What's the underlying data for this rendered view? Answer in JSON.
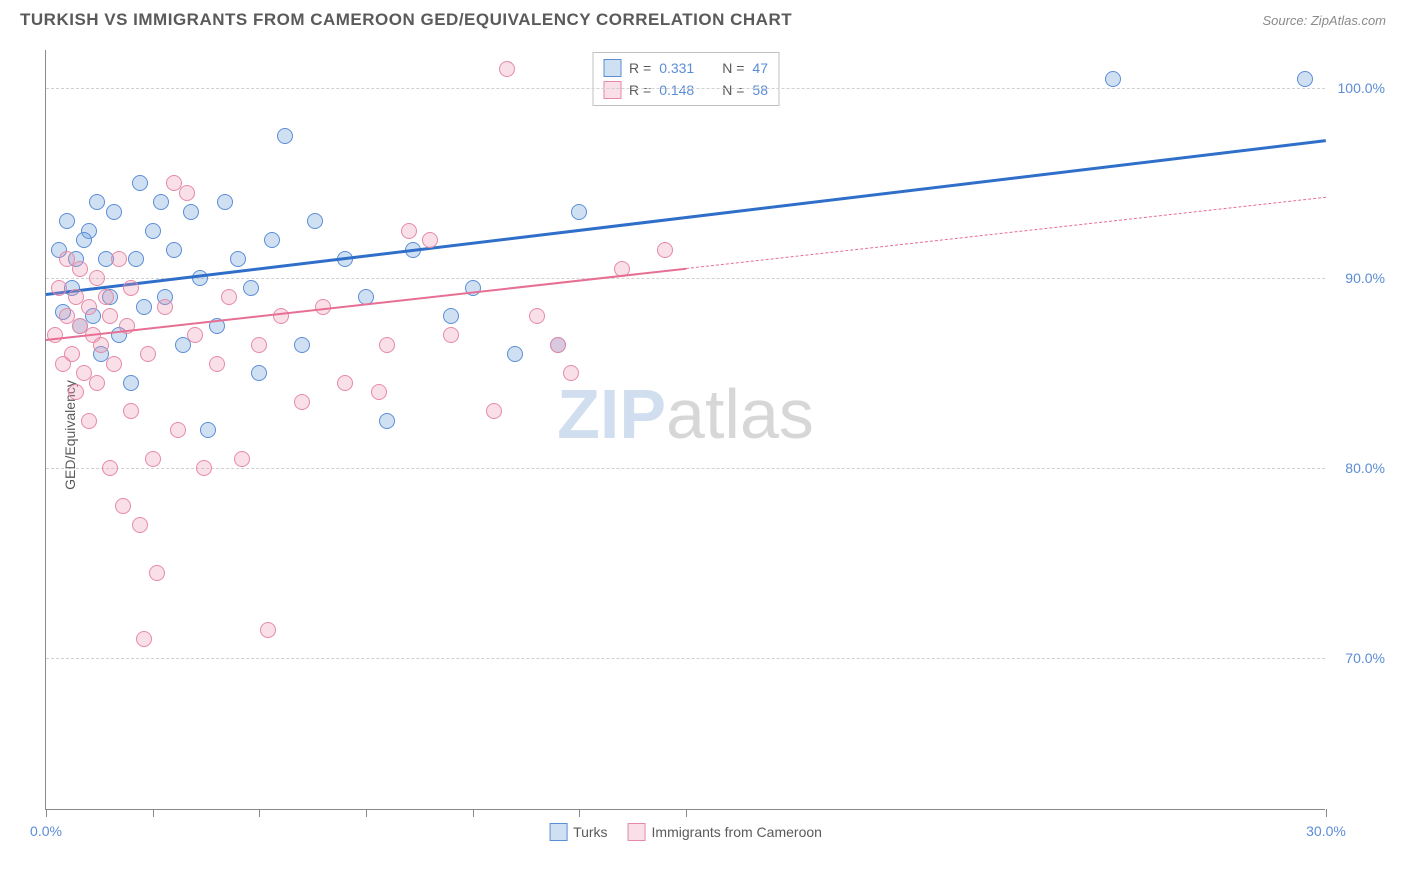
{
  "header": {
    "title": "TURKISH VS IMMIGRANTS FROM CAMEROON GED/EQUIVALENCY CORRELATION CHART",
    "source": "Source: ZipAtlas.com"
  },
  "watermark": {
    "part1": "ZIP",
    "part2": "atlas"
  },
  "chart": {
    "type": "scatter",
    "ylabel": "GED/Equivalency",
    "background_color": "#ffffff",
    "grid_color": "#d0d0d0",
    "axis_color": "#8a8a8a",
    "tick_label_color": "#5b8dd6",
    "xlim": [
      0,
      30
    ],
    "ylim": [
      62,
      102
    ],
    "x_ticks": [
      0,
      2.5,
      5,
      7.5,
      10,
      12.5,
      15,
      30
    ],
    "x_tick_labels": {
      "0": "0.0%",
      "30": "30.0%"
    },
    "y_ticks": [
      70,
      80,
      90,
      100
    ],
    "y_tick_labels": {
      "70": "70.0%",
      "80": "80.0%",
      "90": "90.0%",
      "100": "100.0%"
    },
    "marker_radius": 8,
    "series": [
      {
        "name": "Turks",
        "fill_color": "rgba(120,165,220,0.35)",
        "stroke_color": "#5b8dd6",
        "line_color": "#2f6fc9",
        "line_width": 2.5,
        "trend": {
          "x1": 0,
          "y1": 89.2,
          "x2": 30,
          "y2": 97.3,
          "dash_from_x": null
        },
        "R": "0.331",
        "N": "47",
        "points": [
          [
            0.3,
            91.5
          ],
          [
            0.4,
            88.2
          ],
          [
            0.5,
            93.0
          ],
          [
            0.6,
            89.5
          ],
          [
            0.7,
            91.0
          ],
          [
            0.8,
            87.5
          ],
          [
            1.0,
            92.5
          ],
          [
            1.1,
            88.0
          ],
          [
            1.2,
            94.0
          ],
          [
            1.3,
            86.0
          ],
          [
            1.4,
            91.0
          ],
          [
            1.5,
            89.0
          ],
          [
            1.6,
            93.5
          ],
          [
            1.7,
            87.0
          ],
          [
            0.9,
            92.0
          ],
          [
            2.0,
            84.5
          ],
          [
            2.1,
            91.0
          ],
          [
            2.2,
            95.0
          ],
          [
            2.3,
            88.5
          ],
          [
            2.5,
            92.5
          ],
          [
            2.7,
            94.0
          ],
          [
            2.8,
            89.0
          ],
          [
            3.0,
            91.5
          ],
          [
            3.2,
            86.5
          ],
          [
            3.4,
            93.5
          ],
          [
            3.6,
            90.0
          ],
          [
            3.8,
            82.0
          ],
          [
            4.0,
            87.5
          ],
          [
            4.2,
            94.0
          ],
          [
            4.5,
            91.0
          ],
          [
            4.8,
            89.5
          ],
          [
            5.0,
            85.0
          ],
          [
            5.3,
            92.0
          ],
          [
            5.6,
            97.5
          ],
          [
            6.0,
            86.5
          ],
          [
            6.3,
            93.0
          ],
          [
            7.0,
            91.0
          ],
          [
            7.5,
            89.0
          ],
          [
            8.0,
            82.5
          ],
          [
            8.6,
            91.5
          ],
          [
            9.5,
            88.0
          ],
          [
            10.0,
            89.5
          ],
          [
            11.0,
            86.0
          ],
          [
            12.0,
            86.5
          ],
          [
            12.5,
            93.5
          ],
          [
            25.0,
            100.5
          ],
          [
            29.5,
            100.5
          ]
        ]
      },
      {
        "name": "Immigrants from Cameroon",
        "fill_color": "rgba(235,150,175,0.30)",
        "stroke_color": "#e68aa6",
        "line_color": "#e76f94",
        "line_width": 2,
        "trend": {
          "x1": 0,
          "y1": 86.8,
          "x2": 30,
          "y2": 94.3,
          "dash_from_x": 15
        },
        "R": "0.148",
        "N": "58",
        "points": [
          [
            0.2,
            87.0
          ],
          [
            0.3,
            89.5
          ],
          [
            0.4,
            85.5
          ],
          [
            0.5,
            88.0
          ],
          [
            0.5,
            91.0
          ],
          [
            0.6,
            86.0
          ],
          [
            0.7,
            89.0
          ],
          [
            0.7,
            84.0
          ],
          [
            0.8,
            90.5
          ],
          [
            0.8,
            87.5
          ],
          [
            0.9,
            85.0
          ],
          [
            1.0,
            88.5
          ],
          [
            1.0,
            82.5
          ],
          [
            1.1,
            87.0
          ],
          [
            1.2,
            90.0
          ],
          [
            1.2,
            84.5
          ],
          [
            1.3,
            86.5
          ],
          [
            1.4,
            89.0
          ],
          [
            1.5,
            80.0
          ],
          [
            1.5,
            88.0
          ],
          [
            1.6,
            85.5
          ],
          [
            1.7,
            91.0
          ],
          [
            1.8,
            78.0
          ],
          [
            1.9,
            87.5
          ],
          [
            2.0,
            83.0
          ],
          [
            2.0,
            89.5
          ],
          [
            2.2,
            77.0
          ],
          [
            2.3,
            71.0
          ],
          [
            2.4,
            86.0
          ],
          [
            2.5,
            80.5
          ],
          [
            2.6,
            74.5
          ],
          [
            2.8,
            88.5
          ],
          [
            3.0,
            95.0
          ],
          [
            3.1,
            82.0
          ],
          [
            3.3,
            94.5
          ],
          [
            3.5,
            87.0
          ],
          [
            3.7,
            80.0
          ],
          [
            4.0,
            85.5
          ],
          [
            4.3,
            89.0
          ],
          [
            4.6,
            80.5
          ],
          [
            5.0,
            86.5
          ],
          [
            5.2,
            71.5
          ],
          [
            5.5,
            88.0
          ],
          [
            6.0,
            83.5
          ],
          [
            6.5,
            88.5
          ],
          [
            7.0,
            84.5
          ],
          [
            7.8,
            84.0
          ],
          [
            8.0,
            86.5
          ],
          [
            8.5,
            92.5
          ],
          [
            9.0,
            92.0
          ],
          [
            9.5,
            87.0
          ],
          [
            10.5,
            83.0
          ],
          [
            10.8,
            101.0
          ],
          [
            11.5,
            88.0
          ],
          [
            12.0,
            86.5
          ],
          [
            12.3,
            85.0
          ],
          [
            13.5,
            90.5
          ],
          [
            14.5,
            91.5
          ]
        ]
      }
    ],
    "legend_top": {
      "rows": [
        {
          "swatch_fill": "rgba(120,165,220,0.35)",
          "swatch_stroke": "#5b8dd6",
          "r_label": "R =",
          "r_val": "0.331",
          "n_label": "N =",
          "n_val": "47"
        },
        {
          "swatch_fill": "rgba(235,150,175,0.30)",
          "swatch_stroke": "#e68aa6",
          "r_label": "R =",
          "r_val": "0.148",
          "n_label": "N =",
          "n_val": "58"
        }
      ]
    },
    "legend_bottom": [
      {
        "swatch_fill": "rgba(120,165,220,0.35)",
        "swatch_stroke": "#5b8dd6",
        "label": "Turks"
      },
      {
        "swatch_fill": "rgba(235,150,175,0.30)",
        "swatch_stroke": "#e68aa6",
        "label": "Immigrants from Cameroon"
      }
    ]
  }
}
